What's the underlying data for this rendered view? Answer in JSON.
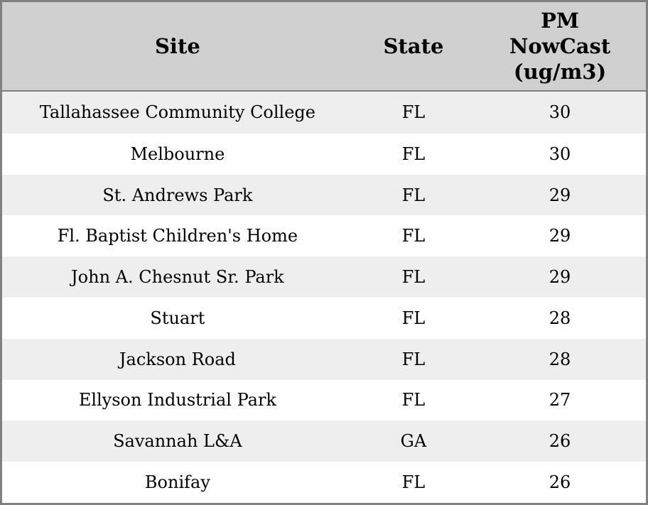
{
  "chart_data": {
    "type": "table",
    "title": "",
    "columns": [
      "Site",
      "State",
      "PM NowCast (ug/m3)"
    ],
    "rows": [
      [
        "Tallahassee Community College",
        "FL",
        30
      ],
      [
        "Melbourne",
        "FL",
        30
      ],
      [
        "St. Andrews Park",
        "FL",
        29
      ],
      [
        "Fl. Baptist Children's Home",
        "FL",
        29
      ],
      [
        "John A. Chesnut Sr. Park",
        "FL",
        29
      ],
      [
        "Stuart",
        "FL",
        28
      ],
      [
        "Jackson Road",
        "FL",
        28
      ],
      [
        "Ellyson Industrial Park",
        "FL",
        27
      ],
      [
        "Savannah L&A",
        "GA",
        26
      ],
      [
        "Bonifay",
        "FL",
        26
      ]
    ],
    "layout": {
      "striped": true,
      "header_align": "center",
      "cell_align": "center"
    }
  },
  "header": {
    "site": "Site",
    "state": "State",
    "pm": "PM\nNowCast\n(ug/m3)"
  },
  "colors": {
    "header_bg": "#d0d0d0",
    "row_alt_bg": "#eeeeee",
    "row_bg": "#ffffff",
    "border": "#808080",
    "text": "#000000"
  }
}
